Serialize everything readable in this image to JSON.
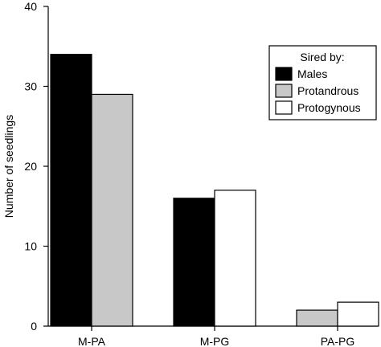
{
  "chart_data": {
    "type": "bar",
    "categories": [
      "M-PA",
      "M-PG",
      "PA-PG"
    ],
    "series": [
      {
        "name": "Males",
        "color": "#000000",
        "values": [
          34,
          16,
          null
        ]
      },
      {
        "name": "Protandrous",
        "color": "#c8c8c8",
        "values": [
          29,
          null,
          2
        ]
      },
      {
        "name": "Protogynous",
        "color": "#ffffff",
        "values": [
          null,
          17,
          3
        ]
      }
    ],
    "ylabel": "Number of seedlings",
    "xlabel": "",
    "ylim": [
      0,
      40
    ],
    "yticks": [
      0,
      10,
      20,
      30,
      40
    ],
    "legend": {
      "title": "Sired by:",
      "position": "top-right"
    },
    "grid": false
  }
}
